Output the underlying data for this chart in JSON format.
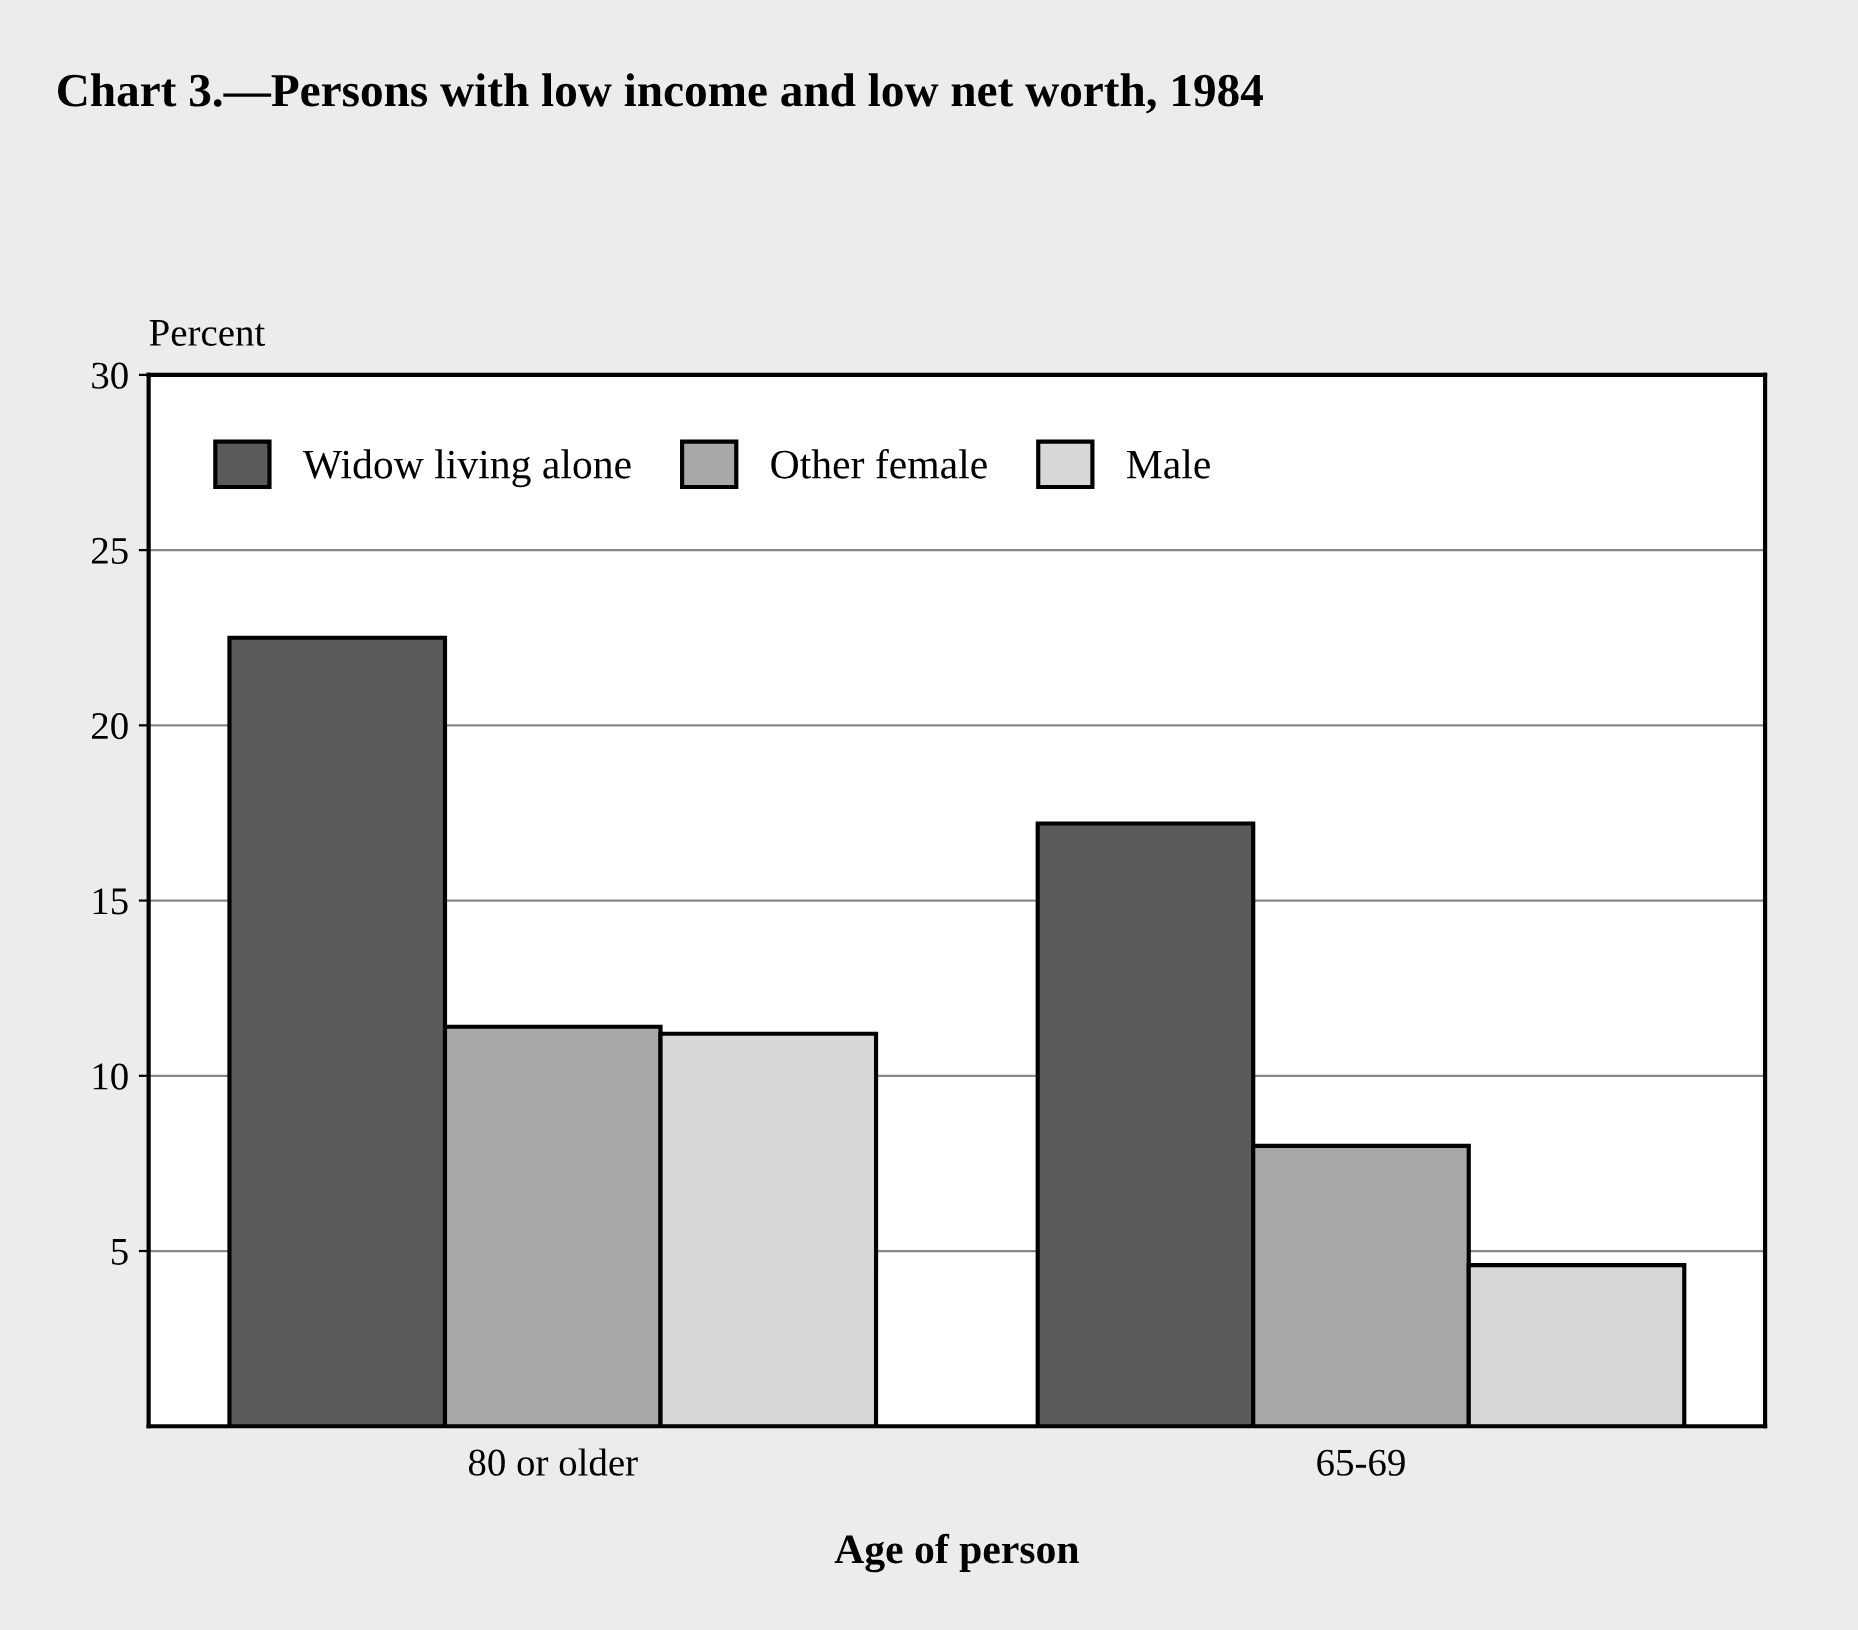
{
  "chart_data": {
    "type": "bar",
    "title": "Chart 3.—Persons with low income and low net worth, 1984",
    "ylabel": "Percent",
    "xlabel": "Age of person",
    "categories": [
      "80 or older",
      "65-69"
    ],
    "series": [
      {
        "name": "Widow living alone",
        "color": "#5a5a5a",
        "values": [
          22.5,
          17.2
        ]
      },
      {
        "name": "Other female",
        "color": "#a8a8a8",
        "values": [
          11.4,
          8.0
        ]
      },
      {
        "name": "Male",
        "color": "#d8d8d8",
        "values": [
          11.2,
          4.6
        ]
      }
    ],
    "ylim": [
      0,
      30
    ],
    "yticks": [
      5,
      10,
      15,
      20,
      25,
      30
    ],
    "grid": "y",
    "legend": "top left"
  }
}
